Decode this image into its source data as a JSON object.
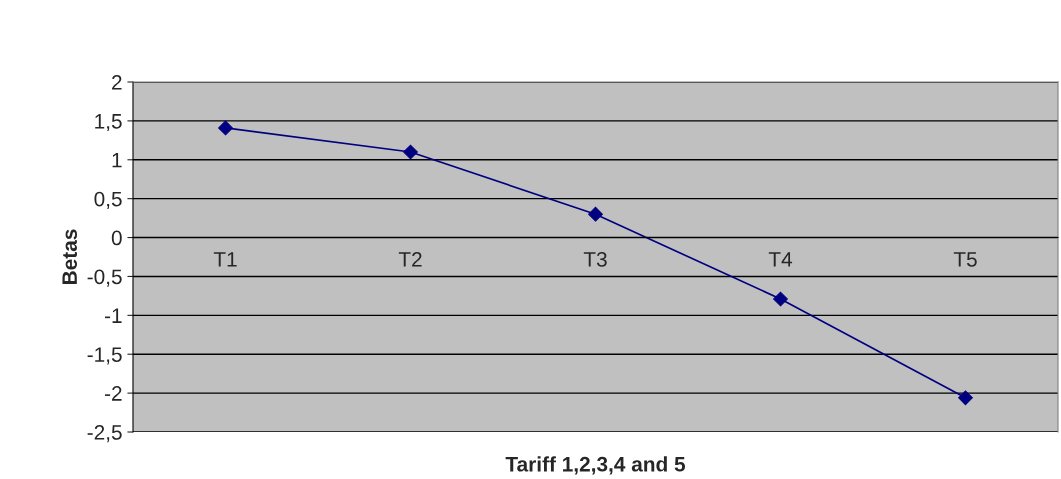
{
  "chart_data": {
    "type": "line",
    "xlabel": "Tariff 1,2,3,4 and 5",
    "ylabel": "Betas",
    "categories": [
      "T1",
      "T2",
      "T3",
      "T4",
      "T5"
    ],
    "series": [
      {
        "color": "#000080",
        "values": [
          1.41,
          1.1,
          0.3,
          -0.79,
          -2.06
        ]
      }
    ],
    "ylim": [
      -2.5,
      2
    ],
    "yticks": [
      {
        "value": -2.5,
        "label": "-2,5"
      },
      -2,
      {
        "value": -1.5,
        "label": "-1,5"
      },
      -1,
      {
        "value": -0.5,
        "label": "-0,5"
      },
      0,
      {
        "value": 0.5,
        "label": "0,5"
      },
      1,
      {
        "value": 1.5,
        "label": "1,5"
      },
      2
    ],
    "grid": "y",
    "marker": "diamond",
    "line_style": "solid"
  }
}
